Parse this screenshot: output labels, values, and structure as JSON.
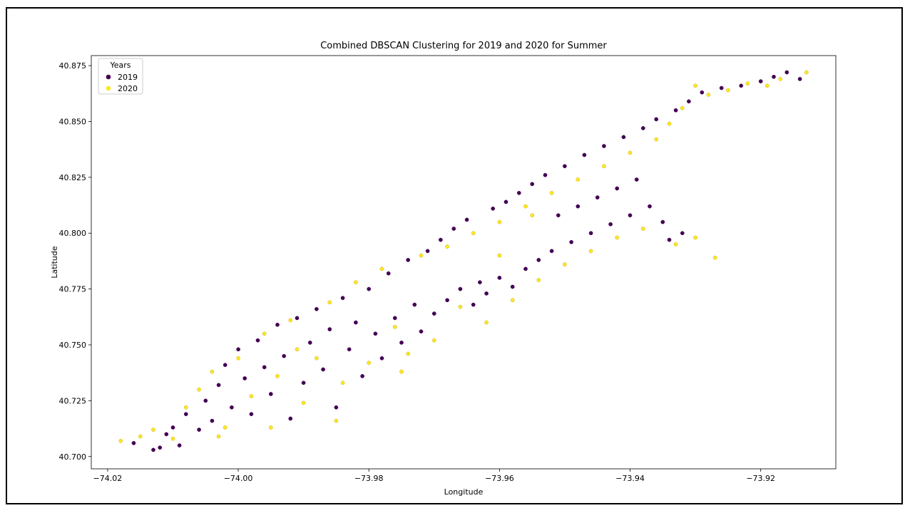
{
  "chart_data": {
    "type": "scatter",
    "title": "Combined DBSCAN Clustering for 2019 and 2020 for Summer",
    "xlabel": "Longitude",
    "ylabel": "Latitude",
    "xlim": [
      -74.0225,
      -73.9085
    ],
    "ylim": [
      40.6945,
      40.8795
    ],
    "x_ticks": [
      -74.02,
      -74.0,
      -73.98,
      -73.96,
      -73.94,
      -73.92
    ],
    "x_tick_labels": [
      "−74.02",
      "−74.00",
      "−73.98",
      "−73.96",
      "−73.94",
      "−73.92"
    ],
    "y_ticks": [
      40.7,
      40.725,
      40.75,
      40.775,
      40.8,
      40.825,
      40.85,
      40.875
    ],
    "y_tick_labels": [
      "40.700",
      "40.725",
      "40.750",
      "40.775",
      "40.800",
      "40.825",
      "40.850",
      "40.875"
    ],
    "grid": false,
    "legend": {
      "title": "Years",
      "placement": "top-left"
    },
    "series": [
      {
        "name": "2019",
        "color": "#440154",
        "points": [
          [
            -74.016,
            40.706
          ],
          [
            -74.013,
            40.703
          ],
          [
            -74.012,
            40.704
          ],
          [
            -74.011,
            40.71
          ],
          [
            -74.01,
            40.713
          ],
          [
            -74.009,
            40.705
          ],
          [
            -74.008,
            40.719
          ],
          [
            -74.006,
            40.712
          ],
          [
            -74.005,
            40.725
          ],
          [
            -74.004,
            40.716
          ],
          [
            -74.003,
            40.732
          ],
          [
            -74.002,
            40.741
          ],
          [
            -74.001,
            40.722
          ],
          [
            -74.0,
            40.748
          ],
          [
            -73.999,
            40.735
          ],
          [
            -73.998,
            40.719
          ],
          [
            -73.997,
            40.752
          ],
          [
            -73.996,
            40.74
          ],
          [
            -73.995,
            40.728
          ],
          [
            -73.994,
            40.759
          ],
          [
            -73.993,
            40.745
          ],
          [
            -73.992,
            40.717
          ],
          [
            -73.991,
            40.762
          ],
          [
            -73.99,
            40.733
          ],
          [
            -73.989,
            40.751
          ],
          [
            -73.988,
            40.766
          ],
          [
            -73.987,
            40.739
          ],
          [
            -73.986,
            40.757
          ],
          [
            -73.985,
            40.722
          ],
          [
            -73.984,
            40.771
          ],
          [
            -73.983,
            40.748
          ],
          [
            -73.982,
            40.76
          ],
          [
            -73.981,
            40.736
          ],
          [
            -73.98,
            40.775
          ],
          [
            -73.979,
            40.755
          ],
          [
            -73.978,
            40.744
          ],
          [
            -73.977,
            40.782
          ],
          [
            -73.976,
            40.762
          ],
          [
            -73.975,
            40.751
          ],
          [
            -73.974,
            40.788
          ],
          [
            -73.973,
            40.768
          ],
          [
            -73.972,
            40.756
          ],
          [
            -73.971,
            40.792
          ],
          [
            -73.97,
            40.764
          ],
          [
            -73.969,
            40.797
          ],
          [
            -73.968,
            40.77
          ],
          [
            -73.967,
            40.802
          ],
          [
            -73.966,
            40.775
          ],
          [
            -73.965,
            40.806
          ],
          [
            -73.964,
            40.768
          ],
          [
            -73.963,
            40.778
          ],
          [
            -73.962,
            40.773
          ],
          [
            -73.961,
            40.811
          ],
          [
            -73.96,
            40.78
          ],
          [
            -73.959,
            40.814
          ],
          [
            -73.958,
            40.776
          ],
          [
            -73.957,
            40.818
          ],
          [
            -73.956,
            40.784
          ],
          [
            -73.955,
            40.822
          ],
          [
            -73.954,
            40.788
          ],
          [
            -73.953,
            40.826
          ],
          [
            -73.952,
            40.792
          ],
          [
            -73.951,
            40.808
          ],
          [
            -73.95,
            40.83
          ],
          [
            -73.949,
            40.796
          ],
          [
            -73.948,
            40.812
          ],
          [
            -73.947,
            40.835
          ],
          [
            -73.946,
            40.8
          ],
          [
            -73.945,
            40.816
          ],
          [
            -73.944,
            40.839
          ],
          [
            -73.943,
            40.804
          ],
          [
            -73.942,
            40.82
          ],
          [
            -73.941,
            40.843
          ],
          [
            -73.94,
            40.808
          ],
          [
            -73.939,
            40.824
          ],
          [
            -73.938,
            40.847
          ],
          [
            -73.937,
            40.812
          ],
          [
            -73.936,
            40.851
          ],
          [
            -73.935,
            40.805
          ],
          [
            -73.933,
            40.855
          ],
          [
            -73.931,
            40.859
          ],
          [
            -73.929,
            40.863
          ],
          [
            -73.926,
            40.865
          ],
          [
            -73.923,
            40.866
          ],
          [
            -73.92,
            40.868
          ],
          [
            -73.918,
            40.87
          ],
          [
            -73.916,
            40.872
          ],
          [
            -73.914,
            40.869
          ],
          [
            -73.932,
            40.8
          ],
          [
            -73.934,
            40.797
          ]
        ]
      },
      {
        "name": "2020",
        "color": "#fde725",
        "points": [
          [
            -74.018,
            40.707
          ],
          [
            -74.015,
            40.709
          ],
          [
            -74.013,
            40.712
          ],
          [
            -74.01,
            40.708
          ],
          [
            -74.008,
            40.722
          ],
          [
            -74.006,
            40.73
          ],
          [
            -74.004,
            40.738
          ],
          [
            -74.002,
            40.713
          ],
          [
            -74.0,
            40.744
          ],
          [
            -73.998,
            40.727
          ],
          [
            -73.996,
            40.755
          ],
          [
            -73.994,
            40.736
          ],
          [
            -73.992,
            40.761
          ],
          [
            -73.99,
            40.724
          ],
          [
            -73.988,
            40.744
          ],
          [
            -73.986,
            40.769
          ],
          [
            -73.984,
            40.733
          ],
          [
            -73.982,
            40.778
          ],
          [
            -73.98,
            40.742
          ],
          [
            -73.978,
            40.784
          ],
          [
            -73.976,
            40.758
          ],
          [
            -73.974,
            40.746
          ],
          [
            -73.972,
            40.79
          ],
          [
            -73.97,
            40.752
          ],
          [
            -73.968,
            40.794
          ],
          [
            -73.966,
            40.767
          ],
          [
            -73.964,
            40.8
          ],
          [
            -73.962,
            40.76
          ],
          [
            -73.96,
            40.805
          ],
          [
            -73.958,
            40.77
          ],
          [
            -73.956,
            40.812
          ],
          [
            -73.954,
            40.779
          ],
          [
            -73.952,
            40.818
          ],
          [
            -73.95,
            40.786
          ],
          [
            -73.948,
            40.824
          ],
          [
            -73.946,
            40.792
          ],
          [
            -73.944,
            40.83
          ],
          [
            -73.942,
            40.798
          ],
          [
            -73.94,
            40.836
          ],
          [
            -73.938,
            40.802
          ],
          [
            -73.936,
            40.842
          ],
          [
            -73.934,
            40.849
          ],
          [
            -73.932,
            40.856
          ],
          [
            -73.93,
            40.866
          ],
          [
            -73.928,
            40.862
          ],
          [
            -73.925,
            40.864
          ],
          [
            -73.922,
            40.867
          ],
          [
            -73.919,
            40.866
          ],
          [
            -73.917,
            40.869
          ],
          [
            -73.913,
            40.872
          ],
          [
            -73.93,
            40.798
          ],
          [
            -73.927,
            40.789
          ],
          [
            -73.933,
            40.795
          ],
          [
            -73.96,
            40.79
          ],
          [
            -73.955,
            40.808
          ],
          [
            -73.975,
            40.738
          ],
          [
            -73.985,
            40.716
          ],
          [
            -73.995,
            40.713
          ],
          [
            -74.003,
            40.709
          ],
          [
            -73.991,
            40.748
          ]
        ]
      }
    ]
  }
}
